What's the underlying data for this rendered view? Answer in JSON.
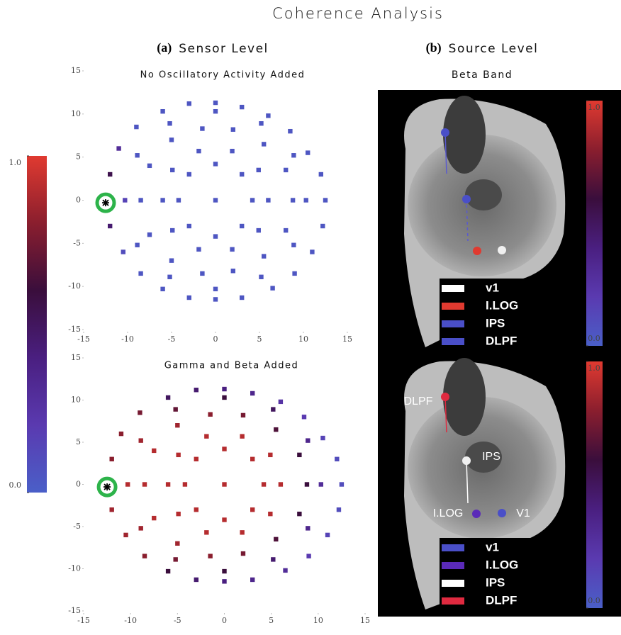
{
  "title": "Coherence Analysis",
  "panels": [
    {
      "label": "(a)",
      "title": "Sensor Level"
    },
    {
      "label": "(b)",
      "title": "Source Level",
      "subtitle": "Beta Band"
    }
  ],
  "colorbar": {
    "lim": [
      0,
      1
    ],
    "ticks": [
      {
        "value": 1,
        "label": "1.0"
      },
      {
        "value": 0,
        "label": "0.0"
      }
    ],
    "colormap": [
      "#4a5fc8",
      "#5a3ab0",
      "#4a1f80",
      "#3a0e3c",
      "#8a1e2e",
      "#e03a30"
    ]
  },
  "chart_data": [
    {
      "type": "scatter",
      "title": "No Oscillatory Activity Added",
      "xlim": [
        -15,
        15
      ],
      "ylim": [
        -15,
        15
      ],
      "xticks": [
        -15,
        -10,
        -5,
        0,
        5,
        10,
        15
      ],
      "yticks": [
        -15,
        -10,
        -5,
        0,
        5,
        10,
        15
      ],
      "seed": {
        "x": -12.5,
        "y": -0.3
      },
      "x": [
        -12,
        -11,
        -9,
        -6,
        -3,
        0,
        3,
        6,
        8.5,
        10.5,
        12,
        12.5,
        12.2,
        11,
        9,
        6.5,
        3,
        0,
        -3,
        -6,
        -8.5,
        -10.5,
        -12,
        -10.3,
        -8.9,
        -5.2,
        0,
        5.2,
        8.9,
        10.3,
        8.9,
        5.2,
        0,
        -5.2,
        -8.9,
        -8.5,
        -7.5,
        -5,
        -1.5,
        2,
        5.5,
        8,
        8.8,
        8,
        5.5,
        2,
        -1.5,
        -5,
        -7.5,
        -6,
        -4.9,
        -1.9,
        1.9,
        4.9,
        6,
        4.9,
        1.9,
        -1.9,
        -4.9,
        -4.2,
        -3,
        0,
        3,
        4.2,
        3,
        0,
        -3,
        0
      ],
      "y": [
        3,
        6,
        8.5,
        10.3,
        11.2,
        11.3,
        10.8,
        9.8,
        8,
        5.5,
        3,
        0,
        -3,
        -6,
        -8.5,
        -10.2,
        -11.3,
        -11.5,
        -11.3,
        -10.3,
        -8.5,
        -6,
        -3,
        0,
        5.2,
        8.9,
        10.3,
        8.9,
        5.2,
        0,
        -5.2,
        -8.9,
        -10.3,
        -8.9,
        -5.2,
        0,
        4,
        7,
        8.3,
        8.2,
        6.5,
        3.5,
        0,
        -3.5,
        -6.5,
        -8.2,
        -8.5,
        -7,
        -4,
        0,
        3.5,
        5.7,
        5.7,
        3.5,
        0,
        -3.5,
        -5.7,
        -5.7,
        -3.5,
        0,
        3,
        4.2,
        3,
        0,
        -3,
        -4.2,
        -3,
        0
      ],
      "values": [
        0.55,
        0.3,
        0.05,
        0.05,
        0.05,
        0.05,
        0.05,
        0.05,
        0.05,
        0.05,
        0.05,
        0.05,
        0.05,
        0.05,
        0.05,
        0.05,
        0.05,
        0.05,
        0.05,
        0.05,
        0.05,
        0.1,
        0.45,
        0.15,
        0.05,
        0.05,
        0.05,
        0.05,
        0.05,
        0.05,
        0.05,
        0.05,
        0.05,
        0.05,
        0.05,
        0.05,
        0.05,
        0.05,
        0.05,
        0.05,
        0.05,
        0.05,
        0.05,
        0.05,
        0.05,
        0.05,
        0.05,
        0.05,
        0.05,
        0.05,
        0.05,
        0.05,
        0.05,
        0.05,
        0.05,
        0.05,
        0.05,
        0.05,
        0.05,
        0.05,
        0.05,
        0.05,
        0.05,
        0.05,
        0.05,
        0.05,
        0.05,
        0.05
      ]
    },
    {
      "type": "scatter",
      "title": "Gamma and Beta Added",
      "xlim": [
        -15,
        15
      ],
      "ylim": [
        -15,
        15
      ],
      "xticks": [
        -15,
        -10,
        -5,
        0,
        5,
        10,
        15
      ],
      "yticks": [
        -15,
        -10,
        -5,
        0,
        5,
        10,
        15
      ],
      "seed": {
        "x": -12.5,
        "y": -0.3
      },
      "x": [
        -12,
        -11,
        -9,
        -6,
        -3,
        0,
        3,
        6,
        8.5,
        10.5,
        12,
        12.5,
        12.2,
        11,
        9,
        6.5,
        3,
        0,
        -3,
        -6,
        -8.5,
        -10.5,
        -12,
        -10.3,
        -8.9,
        -5.2,
        0,
        5.2,
        8.9,
        10.3,
        8.9,
        5.2,
        0,
        -5.2,
        -8.9,
        -8.5,
        -7.5,
        -5,
        -1.5,
        2,
        5.5,
        8,
        8.8,
        8,
        5.5,
        2,
        -1.5,
        -5,
        -7.5,
        -6,
        -4.9,
        -1.9,
        1.9,
        4.9,
        6,
        4.9,
        1.9,
        -1.9,
        -4.9,
        -4.2,
        -3,
        0,
        3,
        4.2,
        3,
        0,
        -3,
        0
      ],
      "y": [
        3,
        6,
        8.5,
        10.3,
        11.2,
        11.3,
        10.8,
        9.8,
        8,
        5.5,
        3,
        0,
        -3,
        -6,
        -8.5,
        -10.2,
        -11.3,
        -11.5,
        -11.3,
        -10.3,
        -8.5,
        -6,
        -3,
        0,
        5.2,
        8.9,
        10.3,
        8.9,
        5.2,
        0,
        -5.2,
        -8.9,
        -10.3,
        -8.9,
        -5.2,
        0,
        4,
        7,
        8.3,
        8.2,
        6.5,
        3.5,
        0,
        -3.5,
        -6.5,
        -8.2,
        -8.5,
        -7,
        -4,
        0,
        3.5,
        5.7,
        5.7,
        3.5,
        0,
        -3.5,
        -5.7,
        -5.7,
        -3.5,
        0,
        3,
        4.2,
        3,
        0,
        -3,
        -4.2,
        -3,
        0
      ],
      "values": [
        0.8,
        0.8,
        0.75,
        0.5,
        0.45,
        0.4,
        0.35,
        0.25,
        0.2,
        0.15,
        0.1,
        0.1,
        0.1,
        0.15,
        0.2,
        0.3,
        0.35,
        0.4,
        0.45,
        0.6,
        0.8,
        0.85,
        0.85,
        0.9,
        0.85,
        0.7,
        0.6,
        0.5,
        0.35,
        0.3,
        0.35,
        0.45,
        0.6,
        0.75,
        0.85,
        0.9,
        0.9,
        0.85,
        0.8,
        0.75,
        0.65,
        0.6,
        0.6,
        0.6,
        0.65,
        0.75,
        0.8,
        0.85,
        0.9,
        0.9,
        0.9,
        0.9,
        0.9,
        0.9,
        0.9,
        0.9,
        0.9,
        0.9,
        0.9,
        0.9,
        0.9,
        0.9,
        0.9,
        0.9,
        0.9,
        0.9,
        0.9,
        0.9
      ]
    }
  ],
  "source_level": {
    "images": [
      {
        "colorbar": {
          "ticks": [
            {
              "value": 1,
              "label": "1.0"
            },
            {
              "value": 0,
              "label": "0.0"
            }
          ]
        },
        "legend": [
          {
            "name": "v1",
            "color": "#ffffff"
          },
          {
            "name": "I.LOG",
            "color": "#e03a30"
          },
          {
            "name": "IPS",
            "color": "#4a4fc8"
          },
          {
            "name": "DLPF",
            "color": "#4a4fc8"
          }
        ],
        "annotations": []
      },
      {
        "colorbar": {
          "ticks": [
            {
              "value": 1,
              "label": "1.0"
            },
            {
              "value": 0,
              "label": "0.0"
            }
          ]
        },
        "legend": [
          {
            "name": "v1",
            "color": "#4a4fc8"
          },
          {
            "name": "I.LOG",
            "color": "#5a2ab8"
          },
          {
            "name": "IPS",
            "color": "#ffffff"
          },
          {
            "name": "DLPF",
            "color": "#e02a40"
          }
        ],
        "annotations": [
          "DLPF",
          "IPS",
          "I.LOG",
          "V1"
        ]
      }
    ]
  }
}
